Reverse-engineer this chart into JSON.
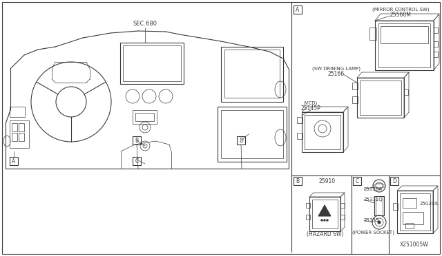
{
  "bg_color": "#ffffff",
  "line_color": "#3a3a3a",
  "section_label": "SEC.680",
  "parts": {
    "mirror_sw_part": "25560M",
    "mirror_sw_label": "(MIRROR CONTROL SW)",
    "driving_lamp_part": "25166",
    "driving_lamp_label": "(SW DRINING LAMP)",
    "vcd_part": "25145P",
    "vcd_label": "(VCD)",
    "hazard_part": "25910",
    "hazard_label": "(HAZARD SW)",
    "ps_a": "25330A",
    "ps_q": "25331Q",
    "ps_9": "25339",
    "ps_label": "(POWER SOCKET)",
    "d_part": "25020X",
    "footer": "X251005W"
  },
  "figsize": [
    6.4,
    3.72
  ],
  "dpi": 100
}
